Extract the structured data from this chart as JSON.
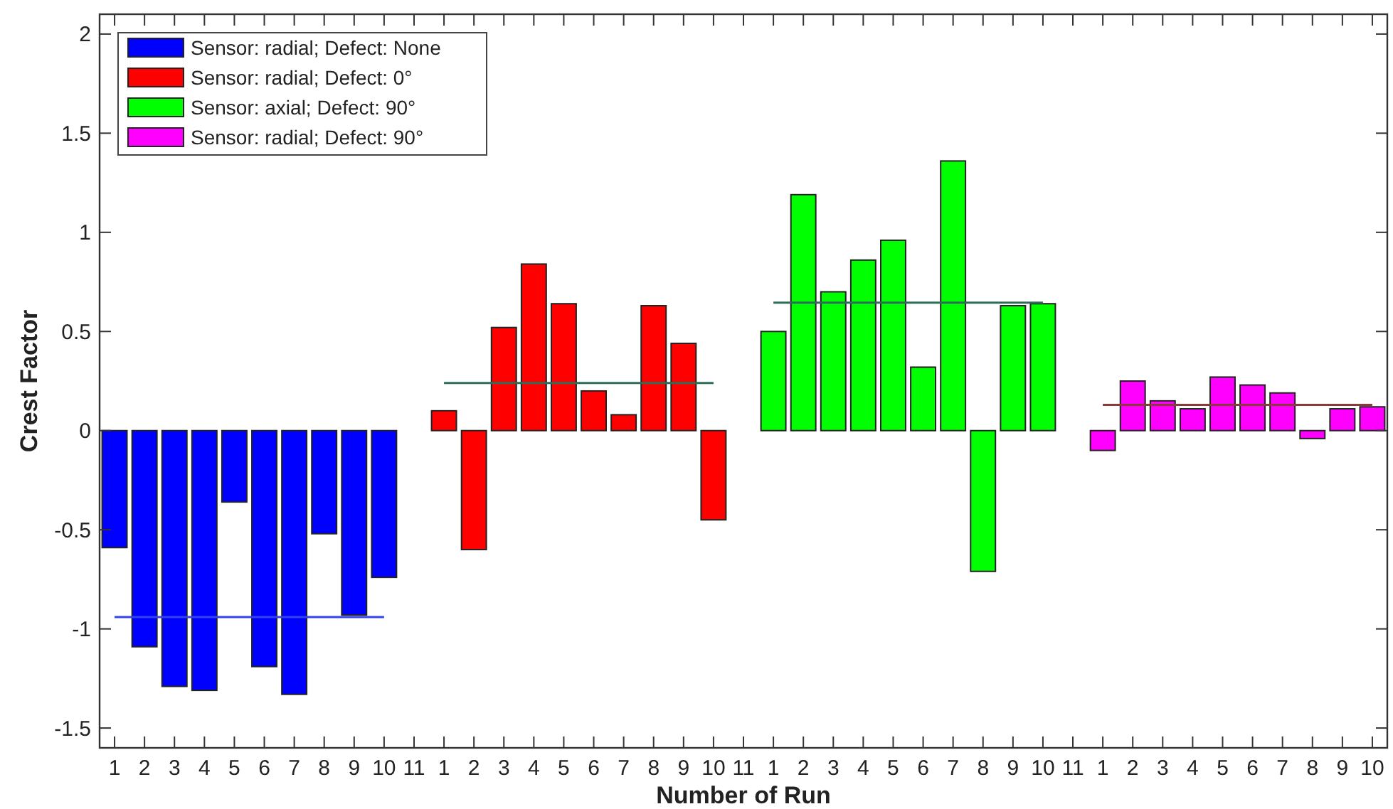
{
  "chart_data": {
    "type": "bar",
    "xlabel": "Number of Run",
    "ylabel": "Crest Factor",
    "categories": [
      "1",
      "2",
      "3",
      "4",
      "5",
      "6",
      "7",
      "8",
      "9",
      "10",
      "11",
      "1",
      "2",
      "3",
      "4",
      "5",
      "6",
      "7",
      "8",
      "9",
      "10",
      "11",
      "1",
      "2",
      "3",
      "4",
      "5",
      "6",
      "7",
      "8",
      "9",
      "10",
      "11",
      "1",
      "2",
      "3",
      "4",
      "5",
      "6",
      "7",
      "8",
      "9",
      "10"
    ],
    "series": [
      {
        "name": "Sensor: radial; Defect: None",
        "color": "#0000ff",
        "values": [
          -0.59,
          -1.09,
          -1.29,
          -1.31,
          -0.36,
          -1.19,
          -1.33,
          -0.52,
          -0.93,
          -0.74,
          0,
          null,
          null,
          null,
          null,
          null,
          null,
          null,
          null,
          null,
          null,
          null,
          null,
          null,
          null,
          null,
          null,
          null,
          null,
          null,
          null,
          null,
          null,
          null,
          null,
          null,
          null,
          null,
          null,
          null,
          null,
          null,
          null
        ]
      },
      {
        "name": "Sensor: radial; Defect: 0°",
        "color": "#ff0000",
        "values": [
          null,
          null,
          null,
          null,
          null,
          null,
          null,
          null,
          null,
          null,
          null,
          0.1,
          -0.6,
          0.52,
          0.84,
          0.64,
          0.2,
          0.08,
          0.63,
          0.44,
          -0.45,
          0,
          null,
          null,
          null,
          null,
          null,
          null,
          null,
          null,
          null,
          null,
          null,
          null,
          null,
          null,
          null,
          null,
          null,
          null,
          null,
          null,
          null
        ]
      },
      {
        "name": "Sensor: axial; Defect: 90°",
        "color": "#00ff00",
        "values": [
          null,
          null,
          null,
          null,
          null,
          null,
          null,
          null,
          null,
          null,
          null,
          null,
          null,
          null,
          null,
          null,
          null,
          null,
          null,
          null,
          null,
          null,
          0.5,
          1.19,
          0.7,
          0.86,
          0.96,
          0.32,
          1.36,
          -0.71,
          0.63,
          0.64,
          0,
          null,
          null,
          null,
          null,
          null,
          null,
          null,
          null,
          null,
          null
        ]
      },
      {
        "name": "Sensor: radial; Defect: 90°",
        "color": "#ff00ff",
        "values": [
          null,
          null,
          null,
          null,
          null,
          null,
          null,
          null,
          null,
          null,
          null,
          null,
          null,
          null,
          null,
          null,
          null,
          null,
          null,
          null,
          null,
          null,
          null,
          null,
          null,
          null,
          null,
          null,
          null,
          null,
          null,
          null,
          null,
          -0.1,
          0.25,
          0.15,
          0.11,
          0.27,
          0.23,
          0.19,
          -0.04,
          0.11,
          0.12
        ]
      },
      {
        "type": "line",
        "color": "#3344ee",
        "values": [
          -0.94,
          -0.94,
          -0.94,
          -0.94,
          -0.94,
          -0.94,
          -0.94,
          -0.94,
          -0.94,
          -0.94,
          null,
          null,
          null,
          null,
          null,
          null,
          null,
          null,
          null,
          null,
          null,
          null,
          null,
          null,
          null,
          null,
          null,
          null,
          null,
          null,
          null,
          null,
          null,
          null,
          null,
          null,
          null,
          null,
          null,
          null,
          null,
          null,
          null
        ]
      },
      {
        "type": "line",
        "color": "#2e6e58",
        "values": [
          null,
          null,
          null,
          null,
          null,
          null,
          null,
          null,
          null,
          null,
          null,
          0.24,
          0.24,
          0.24,
          0.24,
          0.24,
          0.24,
          0.24,
          0.24,
          0.24,
          0.24,
          null,
          null,
          null,
          null,
          null,
          null,
          null,
          null,
          null,
          null,
          null,
          null,
          null,
          null,
          null,
          null,
          null,
          null,
          null,
          null,
          null,
          null
        ]
      },
      {
        "type": "line",
        "color": "#2e6e58",
        "values": [
          null,
          null,
          null,
          null,
          null,
          null,
          null,
          null,
          null,
          null,
          null,
          null,
          null,
          null,
          null,
          null,
          null,
          null,
          null,
          null,
          null,
          null,
          0.645,
          0.645,
          0.645,
          0.645,
          0.645,
          0.645,
          0.645,
          0.645,
          0.645,
          0.645,
          null,
          null,
          null,
          null,
          null,
          null,
          null,
          null,
          null,
          null,
          null
        ]
      },
      {
        "type": "line",
        "color": "#8b3a3a",
        "values": [
          null,
          null,
          null,
          null,
          null,
          null,
          null,
          null,
          null,
          null,
          null,
          null,
          null,
          null,
          null,
          null,
          null,
          null,
          null,
          null,
          null,
          null,
          null,
          null,
          null,
          null,
          null,
          null,
          null,
          null,
          null,
          null,
          null,
          0.13,
          0.13,
          0.13,
          0.13,
          0.13,
          0.13,
          0.13,
          0.13,
          0.13,
          0.13
        ]
      }
    ],
    "ylim": [
      -1.6,
      2.1
    ],
    "yticks": [
      -1.5,
      -1,
      -0.5,
      0,
      0.5,
      1,
      1.5,
      2
    ],
    "legend": "top left",
    "grid": false
  }
}
